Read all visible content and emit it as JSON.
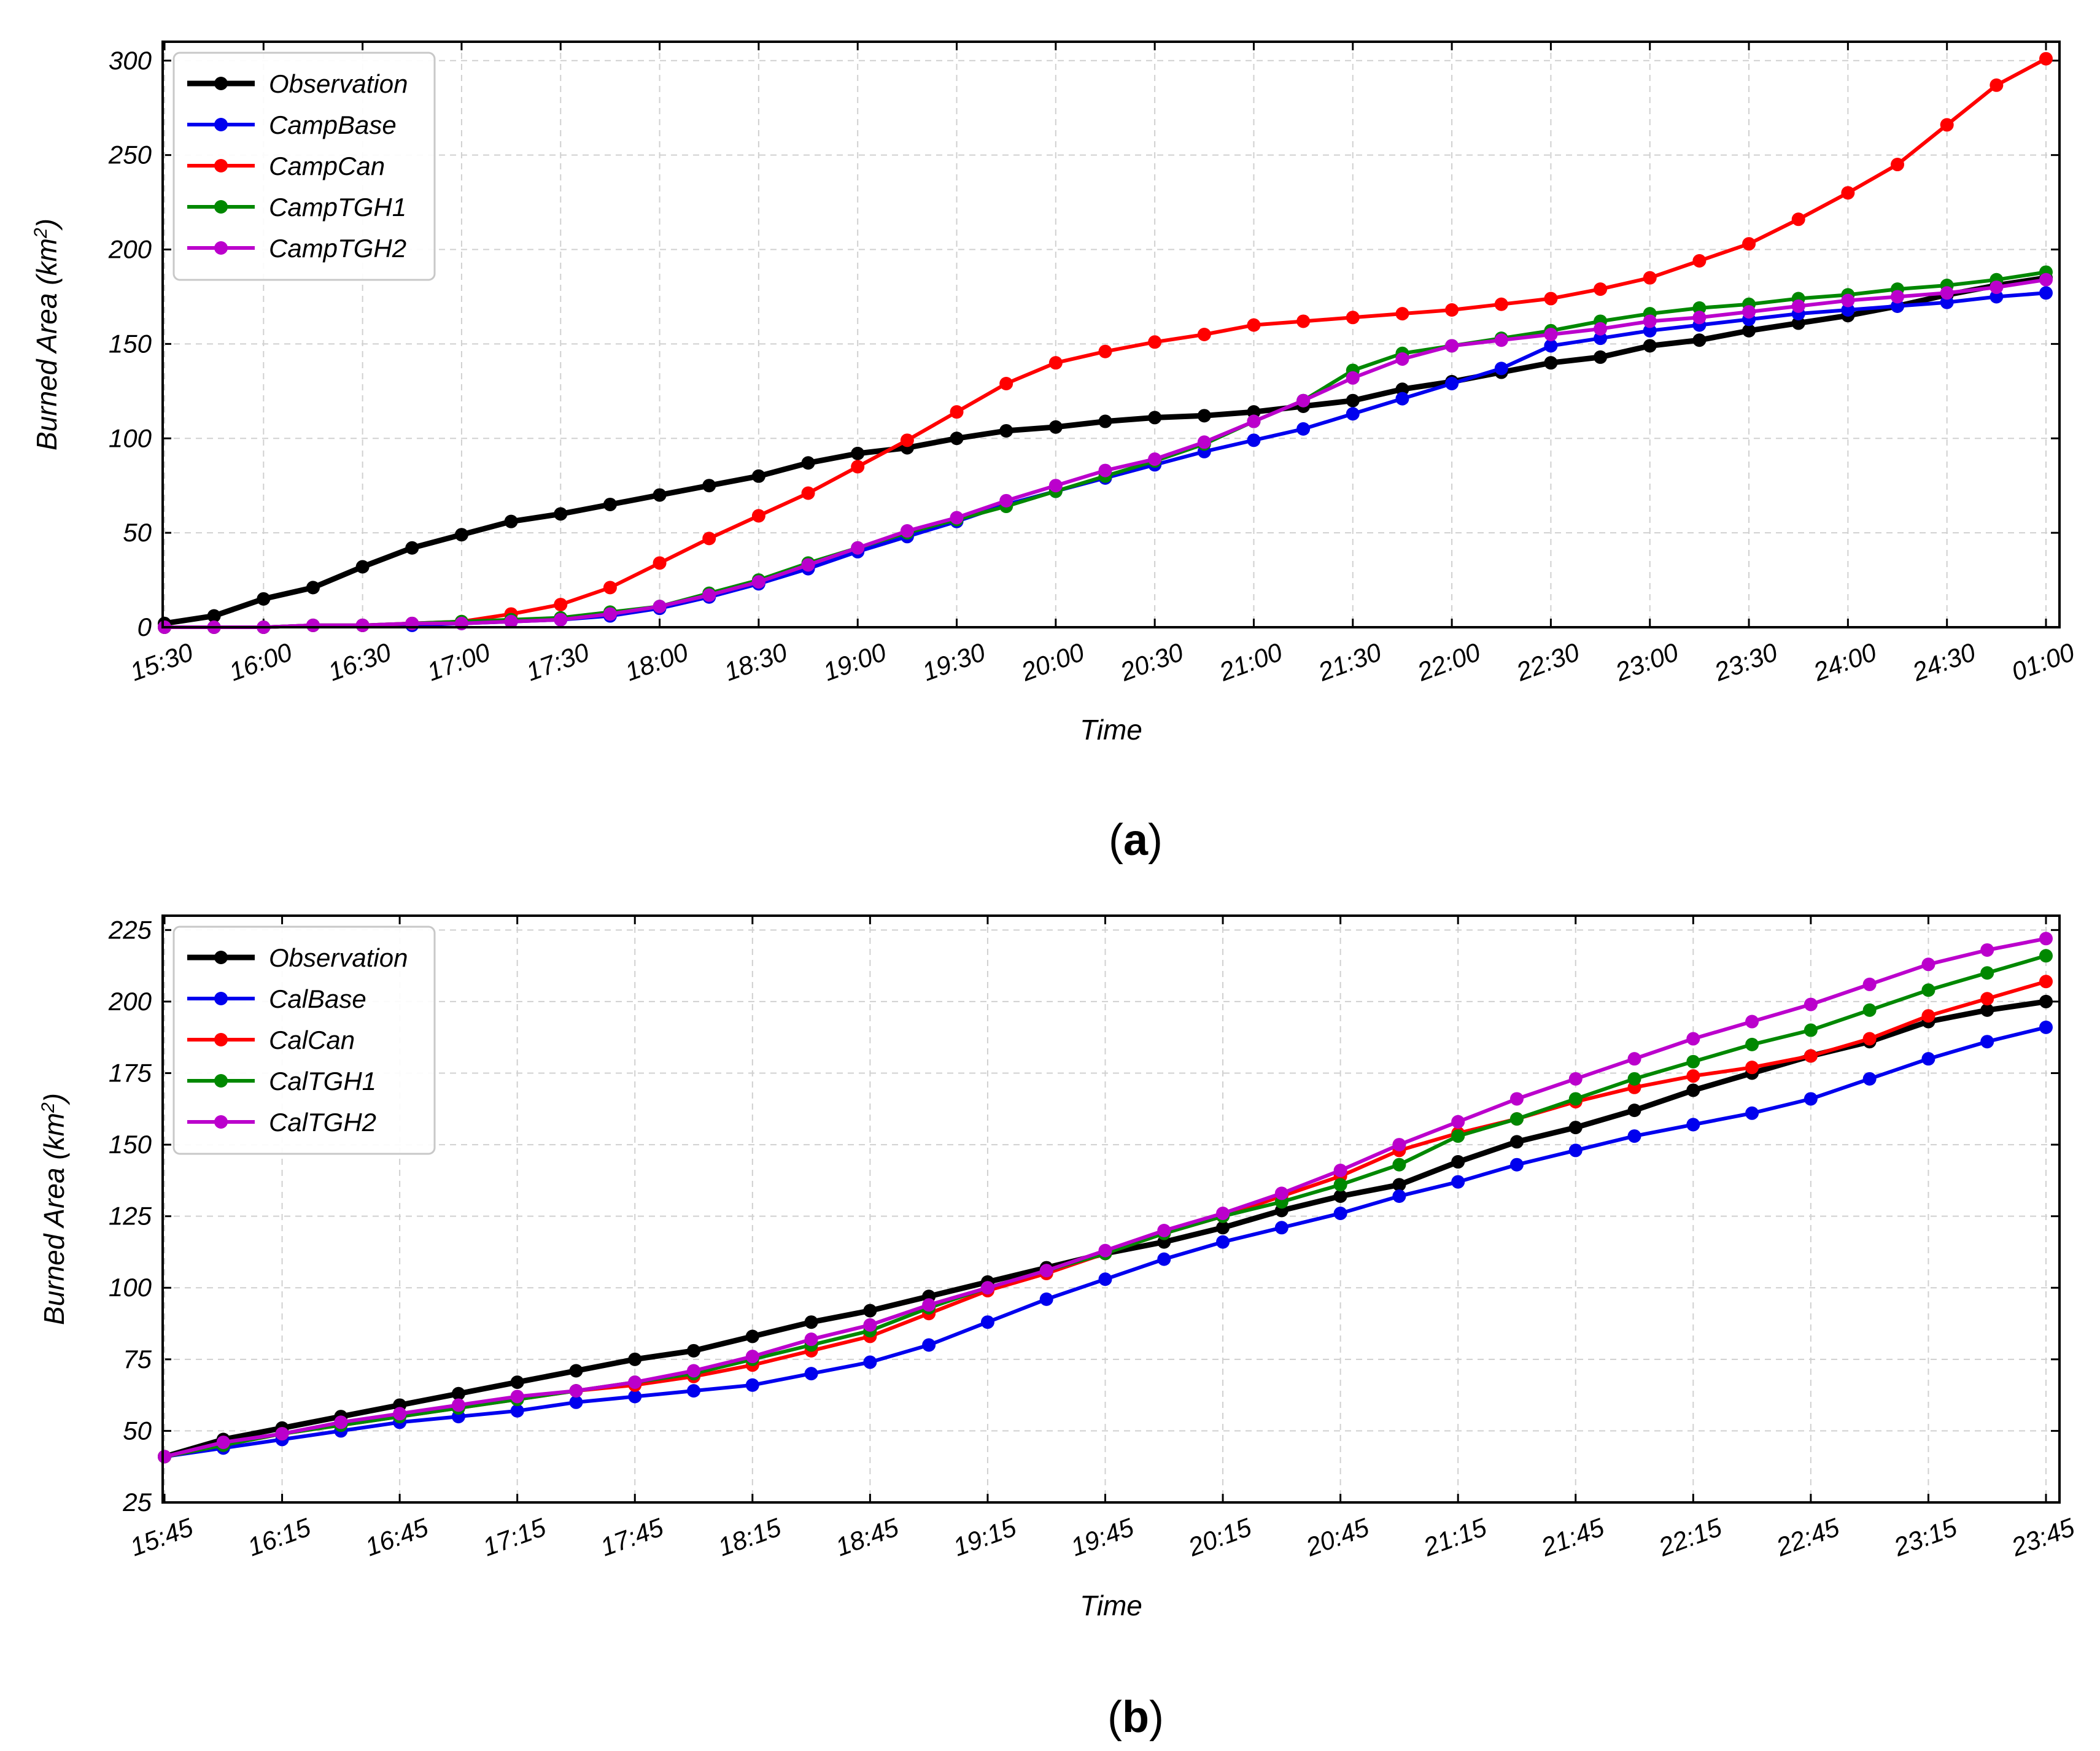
{
  "chart_data": [
    {
      "type": "line",
      "panel_label": "a",
      "xlabel": "Time",
      "ylabel": "Burned Area (km",
      "ylabel_sup": "2",
      "ylabel_close": ")",
      "ylim": [
        0,
        310
      ],
      "yticks": [
        0,
        50,
        100,
        150,
        200,
        250,
        300
      ],
      "xticks": [
        "15:30",
        "16:00",
        "16:30",
        "17:00",
        "17:30",
        "18:00",
        "18:30",
        "19:00",
        "19:30",
        "20:00",
        "20:30",
        "21:00",
        "21:30",
        "22:00",
        "22:30",
        "23:00",
        "23:30",
        "24:00",
        "24:30",
        "01:00"
      ],
      "n_points": 39,
      "legend_position": "top-left",
      "grid": true,
      "series": [
        {
          "name": "Observation",
          "color": "#000000",
          "values": [
            2,
            6,
            15,
            21,
            32,
            42,
            49,
            56,
            60,
            65,
            70,
            75,
            80,
            87,
            92,
            95,
            100,
            104,
            106,
            109,
            111,
            112,
            114,
            117,
            120,
            126,
            130,
            135,
            140,
            143,
            149,
            152,
            157,
            161,
            165,
            170,
            176,
            181,
            185
          ]
        },
        {
          "name": "CampBase",
          "color": "#0000ee",
          "values": [
            0,
            0,
            0,
            1,
            1,
            1,
            2,
            3,
            4,
            6,
            10,
            16,
            23,
            31,
            40,
            48,
            56,
            65,
            72,
            79,
            86,
            93,
            99,
            105,
            113,
            121,
            129,
            137,
            149,
            153,
            157,
            160,
            163,
            166,
            168,
            170,
            172,
            175,
            177
          ]
        },
        {
          "name": "CampCan",
          "color": "#ff0000",
          "values": [
            0,
            0,
            0,
            1,
            1,
            2,
            3,
            7,
            12,
            21,
            34,
            47,
            59,
            71,
            85,
            99,
            114,
            129,
            140,
            146,
            151,
            155,
            160,
            162,
            164,
            166,
            168,
            171,
            174,
            179,
            185,
            194,
            203,
            216,
            230,
            245,
            266,
            287,
            301
          ]
        },
        {
          "name": "CampTGH1",
          "color": "#008800",
          "values": [
            0,
            0,
            0,
            1,
            1,
            2,
            3,
            4,
            5,
            8,
            11,
            18,
            25,
            34,
            42,
            50,
            57,
            64,
            72,
            80,
            88,
            97,
            109,
            120,
            136,
            145,
            149,
            153,
            157,
            162,
            166,
            169,
            171,
            174,
            176,
            179,
            181,
            184,
            188
          ]
        },
        {
          "name": "CampTGH2",
          "color": "#bb00cc",
          "values": [
            0,
            0,
            0,
            1,
            1,
            2,
            2,
            3,
            4,
            7,
            11,
            17,
            24,
            33,
            42,
            51,
            58,
            67,
            75,
            83,
            89,
            98,
            109,
            120,
            132,
            142,
            149,
            152,
            155,
            158,
            162,
            164,
            167,
            170,
            173,
            175,
            177,
            180,
            184
          ]
        }
      ]
    },
    {
      "type": "line",
      "panel_label": "b",
      "xlabel": "Time",
      "ylabel": "Burned Area (km",
      "ylabel_sup": "2",
      "ylabel_close": ")",
      "ylim": [
        25,
        230
      ],
      "yticks": [
        25,
        50,
        75,
        100,
        125,
        150,
        175,
        200,
        225
      ],
      "xticks": [
        "15:45",
        "16:15",
        "16:45",
        "17:15",
        "17:45",
        "18:15",
        "18:45",
        "19:15",
        "19:45",
        "20:15",
        "20:45",
        "21:15",
        "21:45",
        "22:15",
        "22:45",
        "23:15",
        "23:45"
      ],
      "n_points": 33,
      "legend_position": "top-left",
      "grid": true,
      "series": [
        {
          "name": "Observation",
          "color": "#000000",
          "values": [
            41,
            47,
            51,
            55,
            59,
            63,
            67,
            71,
            75,
            78,
            83,
            88,
            92,
            97,
            102,
            107,
            112,
            116,
            121,
            127,
            132,
            136,
            144,
            151,
            156,
            162,
            169,
            175,
            181,
            186,
            193,
            197,
            200
          ]
        },
        {
          "name": "CalBase",
          "color": "#0000ee",
          "values": [
            41,
            44,
            47,
            50,
            53,
            55,
            57,
            60,
            62,
            64,
            66,
            70,
            74,
            80,
            88,
            96,
            103,
            110,
            116,
            121,
            126,
            132,
            137,
            143,
            148,
            153,
            157,
            161,
            166,
            173,
            180,
            186,
            191
          ]
        },
        {
          "name": "CalCan",
          "color": "#ff0000",
          "values": [
            41,
            45,
            49,
            52,
            55,
            58,
            61,
            64,
            66,
            69,
            73,
            78,
            83,
            91,
            99,
            105,
            112,
            119,
            125,
            132,
            139,
            148,
            154,
            159,
            165,
            170,
            174,
            177,
            181,
            187,
            195,
            201,
            207
          ]
        },
        {
          "name": "CalTGH1",
          "color": "#008800",
          "values": [
            41,
            45,
            49,
            52,
            55,
            58,
            61,
            64,
            67,
            70,
            75,
            80,
            85,
            93,
            100,
            106,
            112,
            119,
            125,
            130,
            136,
            143,
            153,
            159,
            166,
            173,
            179,
            185,
            190,
            197,
            204,
            210,
            216
          ]
        },
        {
          "name": "CalTGH2",
          "color": "#bb00cc",
          "values": [
            41,
            46,
            49,
            53,
            56,
            59,
            62,
            64,
            67,
            71,
            76,
            82,
            87,
            94,
            100,
            106,
            113,
            120,
            126,
            133,
            141,
            150,
            158,
            166,
            173,
            180,
            187,
            193,
            199,
            206,
            213,
            218,
            222
          ]
        }
      ]
    }
  ]
}
